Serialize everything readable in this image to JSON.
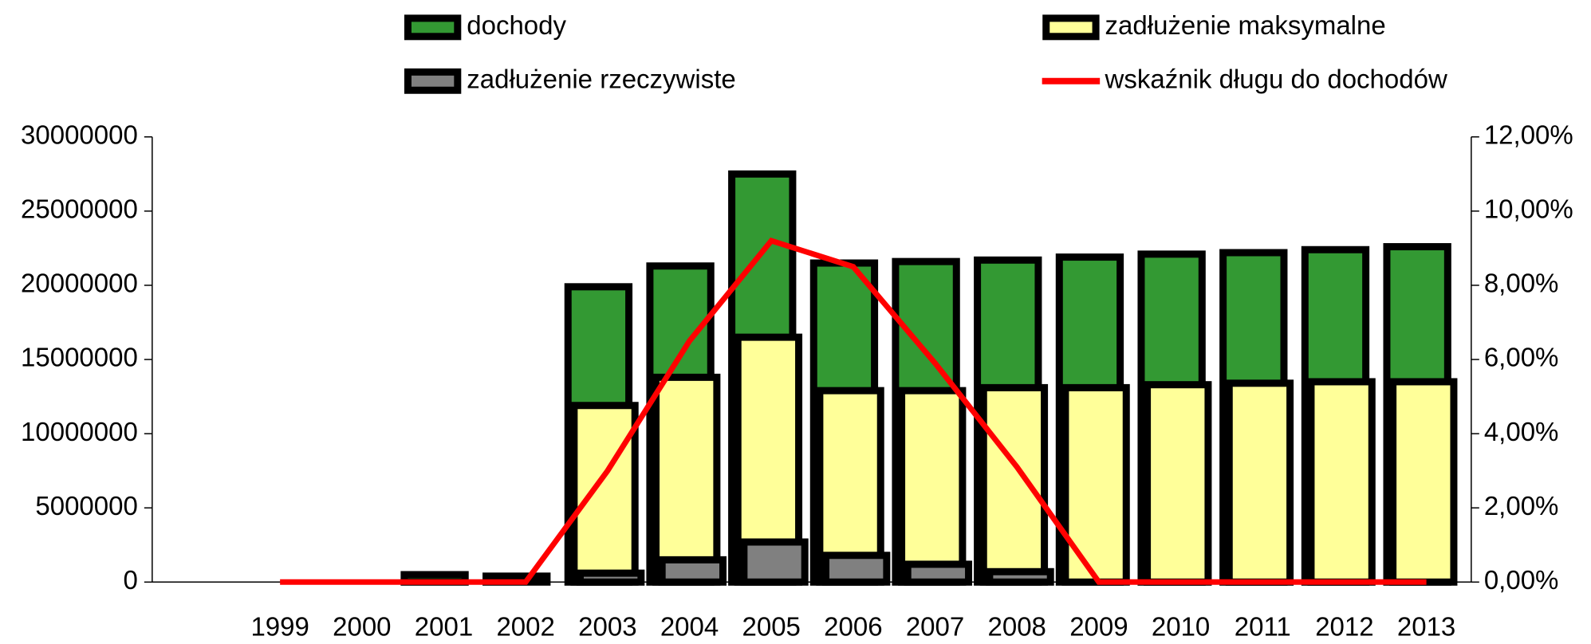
{
  "chart_data": {
    "type": "bar",
    "categories": [
      "1999",
      "2000",
      "2001",
      "2002",
      "2003",
      "2004",
      "2005",
      "2006",
      "2007",
      "2008",
      "2009",
      "2010",
      "2011",
      "2012",
      "2013"
    ],
    "series": [
      {
        "name": "dochody",
        "color": "#339933",
        "values": [
          0,
          0,
          500000.0,
          400000.0,
          19900000.0,
          21300000.0,
          27500000.0,
          21500000.0,
          21600000.0,
          21700000.0,
          21900000.0,
          22100000.0,
          22200000.0,
          22400000.0,
          22600000.0
        ]
      },
      {
        "name": "zadłużenie maksymalne",
        "color": "#ffff99",
        "values": [
          0,
          0,
          0,
          0,
          11900000.0,
          13800000.0,
          16500000.0,
          12900000.0,
          12900000.0,
          13100000.0,
          13100000.0,
          13300000.0,
          13400000.0,
          13500000.0,
          13500000.0
        ]
      },
      {
        "name": "zadłużenie rzeczywiste",
        "color": "#808080",
        "values": [
          0,
          0,
          0,
          0,
          600000.0,
          1500000.0,
          2700000.0,
          1800000.0,
          1200000.0,
          700000.0,
          0,
          0,
          0,
          0,
          0
        ]
      },
      {
        "name": "wskaźnik długu do dochodów",
        "color": "#ff0000",
        "type": "line",
        "axis": "y2",
        "values": [
          0,
          0,
          0,
          0,
          3.0,
          6.5,
          9.2,
          8.5,
          5.9,
          3.1,
          0,
          0,
          0,
          0,
          0
        ]
      }
    ],
    "ylim": [
      0,
      30000000
    ],
    "yticks": [
      0,
      5000000,
      10000000,
      15000000,
      20000000,
      25000000,
      30000000
    ],
    "y2lim": [
      0,
      12
    ],
    "y2ticks": [
      {
        "value": 0,
        "label": "0,00%"
      },
      {
        "value": 2,
        "label": "2,00%"
      },
      {
        "value": 4,
        "label": "4,00%"
      },
      {
        "value": 6,
        "label": "6,00%"
      },
      {
        "value": 8,
        "label": "8,00%"
      },
      {
        "value": 10,
        "label": "10,00%"
      },
      {
        "value": 12,
        "label": "12,00%"
      }
    ],
    "legend": "top"
  }
}
